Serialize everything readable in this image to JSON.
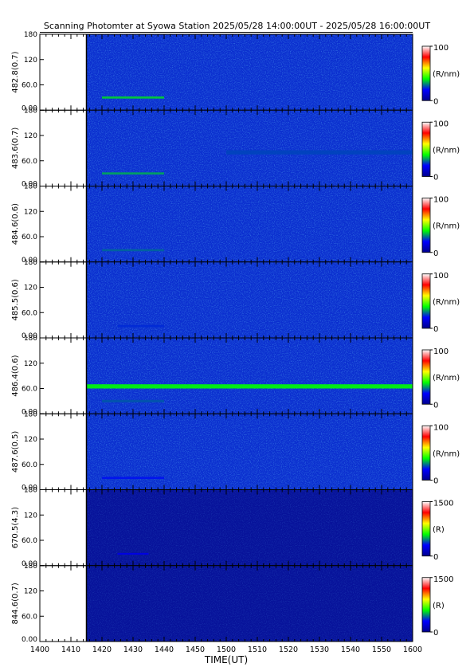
{
  "title": "Scanning Photomter at Syowa Station 2025/05/28 14:00:00UT - 2025/05/28 16:00:00UT",
  "x_axis_title": "TIME(UT)",
  "x_tick_labels": [
    "1400",
    "1410",
    "1420",
    "1430",
    "1440",
    "1450",
    "1500",
    "1510",
    "1520",
    "1530",
    "1540",
    "1550",
    "1600"
  ],
  "y_tick_labels": [
    "0.00",
    "60.0",
    "120",
    "180"
  ],
  "colors": {
    "colormap": [
      "#00008b",
      "#0000ff",
      "#00ff00",
      "#ffff00",
      "#ff0000",
      "#ffffff"
    ],
    "background": "#ffffff",
    "axis": "#000000"
  },
  "chart_data": [
    {
      "type": "heatmap",
      "ylabel": "482.8(0.7)",
      "colorbar_max": "100",
      "colorbar_min": "0",
      "colorbar_unit": "(R/nm)",
      "xlim": [
        "1400",
        "1600"
      ],
      "data_start": "1415",
      "ylim": [
        0,
        180
      ],
      "features": [
        {
          "level": 0.45,
          "y_center": 30,
          "width": 5,
          "t_start": 1420,
          "t_end": 1440
        }
      ]
    },
    {
      "type": "heatmap",
      "ylabel": "483.6(0.7)",
      "colorbar_max": "100",
      "colorbar_min": "0",
      "colorbar_unit": "(R/nm)",
      "xlim": [
        "1400",
        "1600"
      ],
      "data_start": "1415",
      "ylim": [
        0,
        180
      ],
      "features": [
        {
          "level": 0.4,
          "y_center": 30,
          "width": 5,
          "t_start": 1420,
          "t_end": 1440
        },
        {
          "level": 0.28,
          "y_center": 80,
          "width": 10,
          "t_start": 1500,
          "t_end": 1600
        }
      ]
    },
    {
      "type": "heatmap",
      "ylabel": "484.6(0.6)",
      "colorbar_max": "100",
      "colorbar_min": "0",
      "colorbar_unit": "(R/nm)",
      "xlim": [
        "1400",
        "1600"
      ],
      "data_start": "1415",
      "ylim": [
        0,
        180
      ],
      "features": [
        {
          "level": 0.32,
          "y_center": 28,
          "width": 5,
          "t_start": 1420,
          "t_end": 1440
        }
      ]
    },
    {
      "type": "heatmap",
      "ylabel": "485.5(0.6)",
      "colorbar_max": "100",
      "colorbar_min": "0",
      "colorbar_unit": "(R/nm)",
      "xlim": [
        "1400",
        "1600"
      ],
      "data_start": "1415",
      "ylim": [
        0,
        180
      ],
      "features": [
        {
          "level": 0.25,
          "y_center": 28,
          "width": 5,
          "t_start": 1425,
          "t_end": 1440
        }
      ]
    },
    {
      "type": "heatmap",
      "ylabel": "486.4(0.6)",
      "colorbar_max": "100",
      "colorbar_min": "0",
      "colorbar_unit": "(R/nm)",
      "xlim": [
        "1400",
        "1600"
      ],
      "data_start": "1415",
      "ylim": [
        0,
        180
      ],
      "features": [
        {
          "level": 0.5,
          "y_center": 65,
          "width": 10,
          "t_start": 1415,
          "t_end": 1600
        },
        {
          "level": 0.3,
          "y_center": 30,
          "width": 6,
          "t_start": 1420,
          "t_end": 1440
        }
      ]
    },
    {
      "type": "heatmap",
      "ylabel": "487.6(0.5)",
      "colorbar_max": "100",
      "colorbar_min": "0",
      "colorbar_unit": "(R/nm)",
      "xlim": [
        "1400",
        "1600"
      ],
      "data_start": "1415",
      "ylim": [
        0,
        180
      ],
      "features": [
        {
          "level": 0.22,
          "y_center": 28,
          "width": 5,
          "t_start": 1420,
          "t_end": 1440
        }
      ]
    },
    {
      "type": "heatmap",
      "ylabel": "670.5(4.3)",
      "colorbar_max": "1500",
      "colorbar_min": "0",
      "colorbar_unit": "(R)",
      "xlim": [
        "1400",
        "1600"
      ],
      "data_start": "1415",
      "ylim": [
        0,
        180
      ],
      "features": [
        {
          "level": 0.16,
          "y_center": 28,
          "width": 4,
          "t_start": 1425,
          "t_end": 1435
        }
      ]
    },
    {
      "type": "heatmap",
      "ylabel": "844.6(0.7)",
      "colorbar_max": "1500",
      "colorbar_min": "0",
      "colorbar_unit": "(R)",
      "xlim": [
        "1400",
        "1600"
      ],
      "data_start": "1415",
      "ylim": [
        0,
        180
      ],
      "features": []
    }
  ]
}
